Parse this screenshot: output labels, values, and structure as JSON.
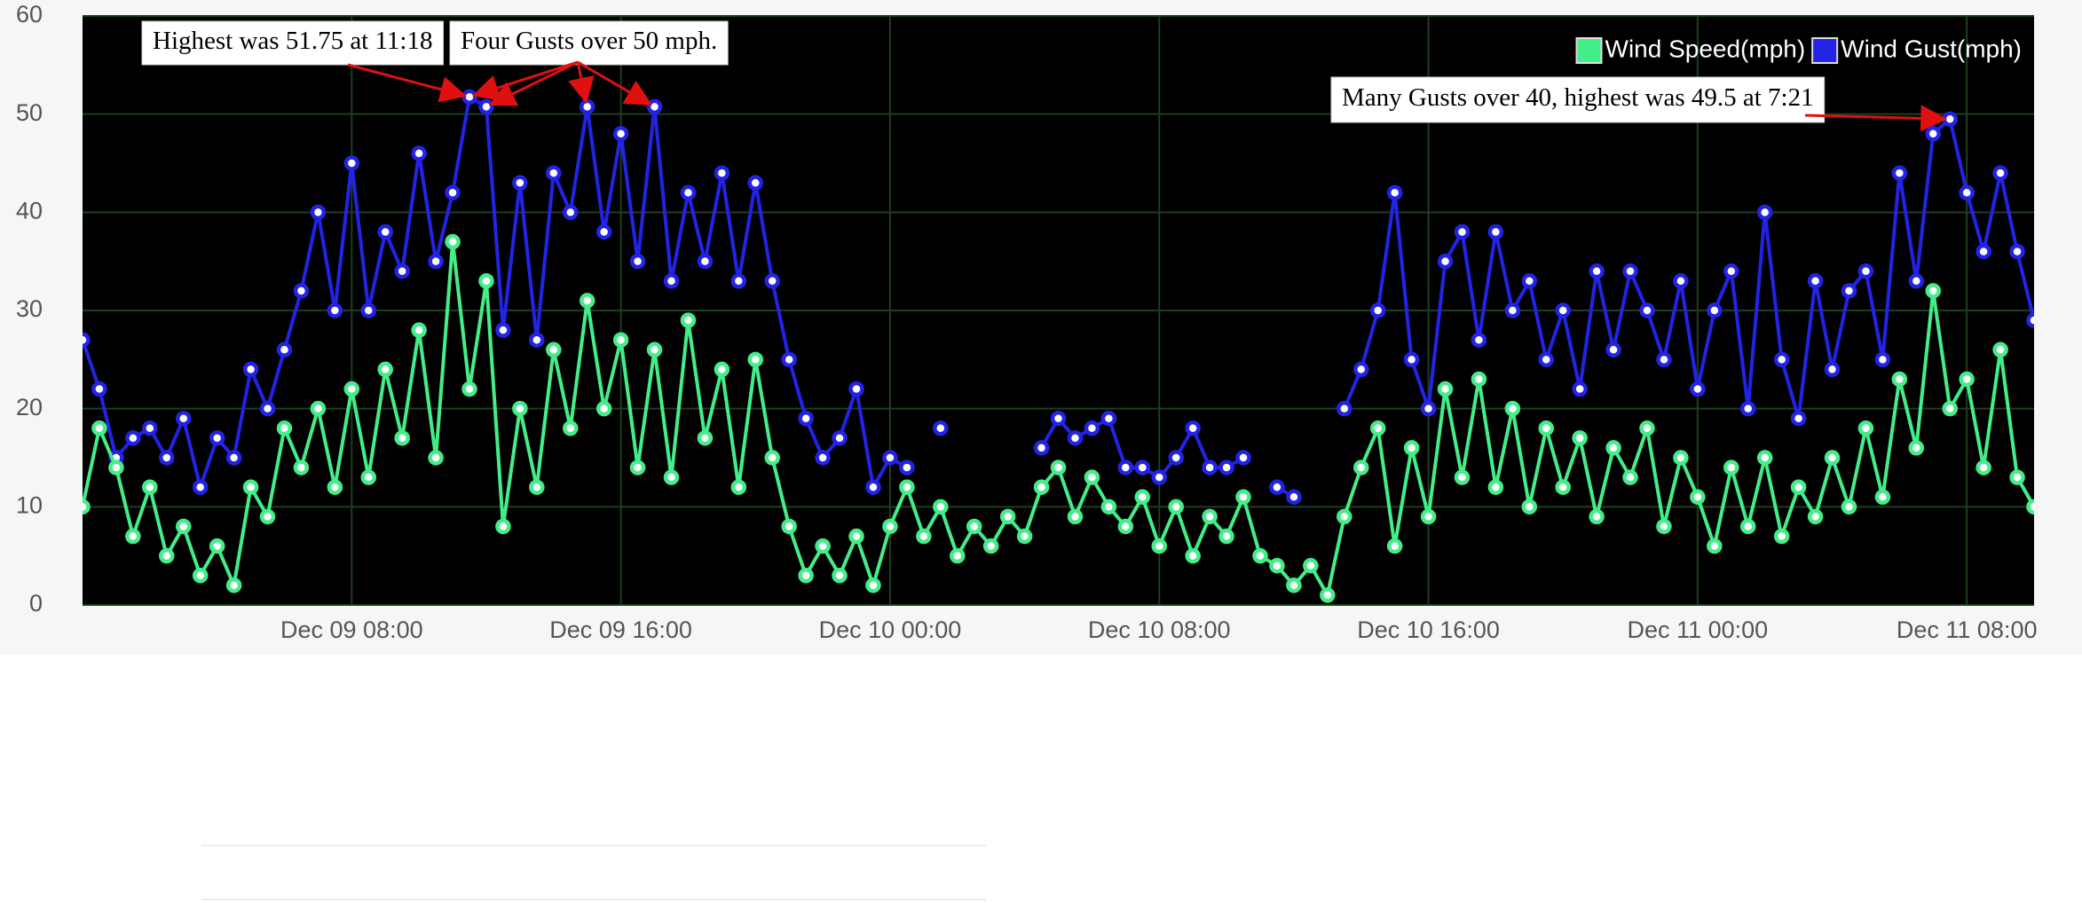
{
  "chart_data": {
    "type": "line",
    "x": [
      "Dec 09 00:00",
      "Dec 09 00:30",
      "Dec 09 01:00",
      "Dec 09 01:30",
      "Dec 09 02:00",
      "Dec 09 02:30",
      "Dec 09 03:00",
      "Dec 09 03:30",
      "Dec 09 04:00",
      "Dec 09 04:30",
      "Dec 09 05:00",
      "Dec 09 05:30",
      "Dec 09 06:00",
      "Dec 09 06:30",
      "Dec 09 07:00",
      "Dec 09 07:30",
      "Dec 09 08:00",
      "Dec 09 08:30",
      "Dec 09 09:00",
      "Dec 09 09:30",
      "Dec 09 10:00",
      "Dec 09 10:30",
      "Dec 09 11:00",
      "Dec 09 11:30",
      "Dec 09 12:00",
      "Dec 09 12:30",
      "Dec 09 13:00",
      "Dec 09 13:30",
      "Dec 09 14:00",
      "Dec 09 14:30",
      "Dec 09 15:00",
      "Dec 09 15:30",
      "Dec 09 16:00",
      "Dec 09 16:30",
      "Dec 09 17:00",
      "Dec 09 17:30",
      "Dec 09 18:00",
      "Dec 09 18:30",
      "Dec 09 19:00",
      "Dec 09 19:30",
      "Dec 09 20:00",
      "Dec 09 20:30",
      "Dec 09 21:00",
      "Dec 09 21:30",
      "Dec 09 22:00",
      "Dec 09 22:30",
      "Dec 09 23:00",
      "Dec 09 23:30",
      "Dec 10 00:00",
      "Dec 10 00:30",
      "Dec 10 01:00",
      "Dec 10 01:30",
      "Dec 10 02:00",
      "Dec 10 02:30",
      "Dec 10 03:00",
      "Dec 10 03:30",
      "Dec 10 04:00",
      "Dec 10 04:30",
      "Dec 10 05:00",
      "Dec 10 05:30",
      "Dec 10 06:00",
      "Dec 10 06:30",
      "Dec 10 07:00",
      "Dec 10 07:30",
      "Dec 10 08:00",
      "Dec 10 08:30",
      "Dec 10 09:00",
      "Dec 10 09:30",
      "Dec 10 10:00",
      "Dec 10 10:30",
      "Dec 10 11:00",
      "Dec 10 11:30",
      "Dec 10 12:00",
      "Dec 10 12:30",
      "Dec 10 13:00",
      "Dec 10 13:30",
      "Dec 10 14:00",
      "Dec 10 14:30",
      "Dec 10 15:00",
      "Dec 10 15:30",
      "Dec 10 16:00",
      "Dec 10 16:30",
      "Dec 10 17:00",
      "Dec 10 17:30",
      "Dec 10 18:00",
      "Dec 10 18:30",
      "Dec 10 19:00",
      "Dec 10 19:30",
      "Dec 10 20:00",
      "Dec 10 20:30",
      "Dec 10 21:00",
      "Dec 10 21:30",
      "Dec 10 22:00",
      "Dec 10 22:30",
      "Dec 10 23:00",
      "Dec 10 23:30",
      "Dec 11 00:00",
      "Dec 11 00:30",
      "Dec 11 01:00",
      "Dec 11 01:30",
      "Dec 11 02:00",
      "Dec 11 02:30",
      "Dec 11 03:00",
      "Dec 11 03:30",
      "Dec 11 04:00",
      "Dec 11 04:30",
      "Dec 11 05:00",
      "Dec 11 05:30",
      "Dec 11 06:00",
      "Dec 11 06:30",
      "Dec 11 07:00",
      "Dec 11 07:30",
      "Dec 11 08:00",
      "Dec 11 08:30",
      "Dec 11 09:00",
      "Dec 11 09:30",
      "Dec 11 10:00"
    ],
    "series": [
      {
        "name": "Wind Speed(mph)",
        "color": "#43ee88",
        "values": [
          10,
          18,
          14,
          7,
          12,
          5,
          8,
          3,
          6,
          2,
          12,
          9,
          18,
          14,
          20,
          12,
          22,
          13,
          24,
          17,
          28,
          15,
          37,
          22,
          33,
          8,
          20,
          12,
          26,
          18,
          31,
          20,
          27,
          14,
          26,
          13,
          29,
          17,
          24,
          12,
          25,
          15,
          8,
          3,
          6,
          3,
          7,
          2,
          8,
          12,
          7,
          10,
          5,
          8,
          6,
          9,
          7,
          12,
          14,
          9,
          13,
          10,
          8,
          11,
          6,
          10,
          5,
          9,
          7,
          11,
          5,
          4,
          2,
          4,
          1,
          9,
          14,
          18,
          6,
          16,
          9,
          22,
          13,
          23,
          12,
          20,
          10,
          18,
          12,
          17,
          9,
          16,
          13,
          18,
          8,
          15,
          11,
          6,
          14,
          8,
          15,
          7,
          12,
          9,
          15,
          10,
          18,
          11,
          23,
          16,
          32,
          20,
          23,
          14,
          26,
          13,
          10
        ]
      },
      {
        "name": "Wind Gust(mph)",
        "color": "#2323e6",
        "values": [
          27,
          22,
          15,
          17,
          18,
          15,
          19,
          12,
          17,
          15,
          24,
          20,
          26,
          32,
          40,
          30,
          45,
          30,
          38,
          34,
          46,
          35,
          42,
          51.75,
          50.75,
          28,
          43,
          27,
          44,
          40,
          50.75,
          38,
          48,
          35,
          50.75,
          33,
          42,
          35,
          44,
          33,
          43,
          33,
          25,
          19,
          15,
          17,
          22,
          12,
          15,
          14,
          null,
          18,
          null,
          null,
          null,
          null,
          null,
          16,
          19,
          17,
          18,
          19,
          14,
          14,
          13,
          15,
          18,
          14,
          14,
          15,
          null,
          12,
          11,
          null,
          null,
          20,
          24,
          30,
          42,
          25,
          20,
          35,
          38,
          27,
          38,
          30,
          33,
          25,
          30,
          22,
          34,
          26,
          34,
          30,
          25,
          33,
          22,
          30,
          34,
          20,
          40,
          25,
          19,
          33,
          24,
          32,
          34,
          25,
          44,
          33,
          48,
          49.5,
          42,
          36,
          44,
          36,
          29
        ]
      }
    ],
    "xlim": [
      "Dec 09 00:00",
      "Dec 11 10:00"
    ],
    "xticks": [
      "Dec 09 08:00",
      "Dec 09 16:00",
      "Dec 10 00:00",
      "Dec 10 08:00",
      "Dec 10 16:00",
      "Dec 11 00:00",
      "Dec 11 08:00"
    ],
    "ylim": [
      0,
      60
    ],
    "yticks": [
      0,
      10,
      20,
      30,
      40,
      50,
      60
    ],
    "grid": true,
    "legend": "top-right",
    "annotations": [
      {
        "text": "Highest was 51.75 at 11:18"
      },
      {
        "text": "Four Gusts over 50 mph."
      },
      {
        "text": "Many Gusts over 40, highest was 49.5 at 7:21"
      }
    ]
  }
}
